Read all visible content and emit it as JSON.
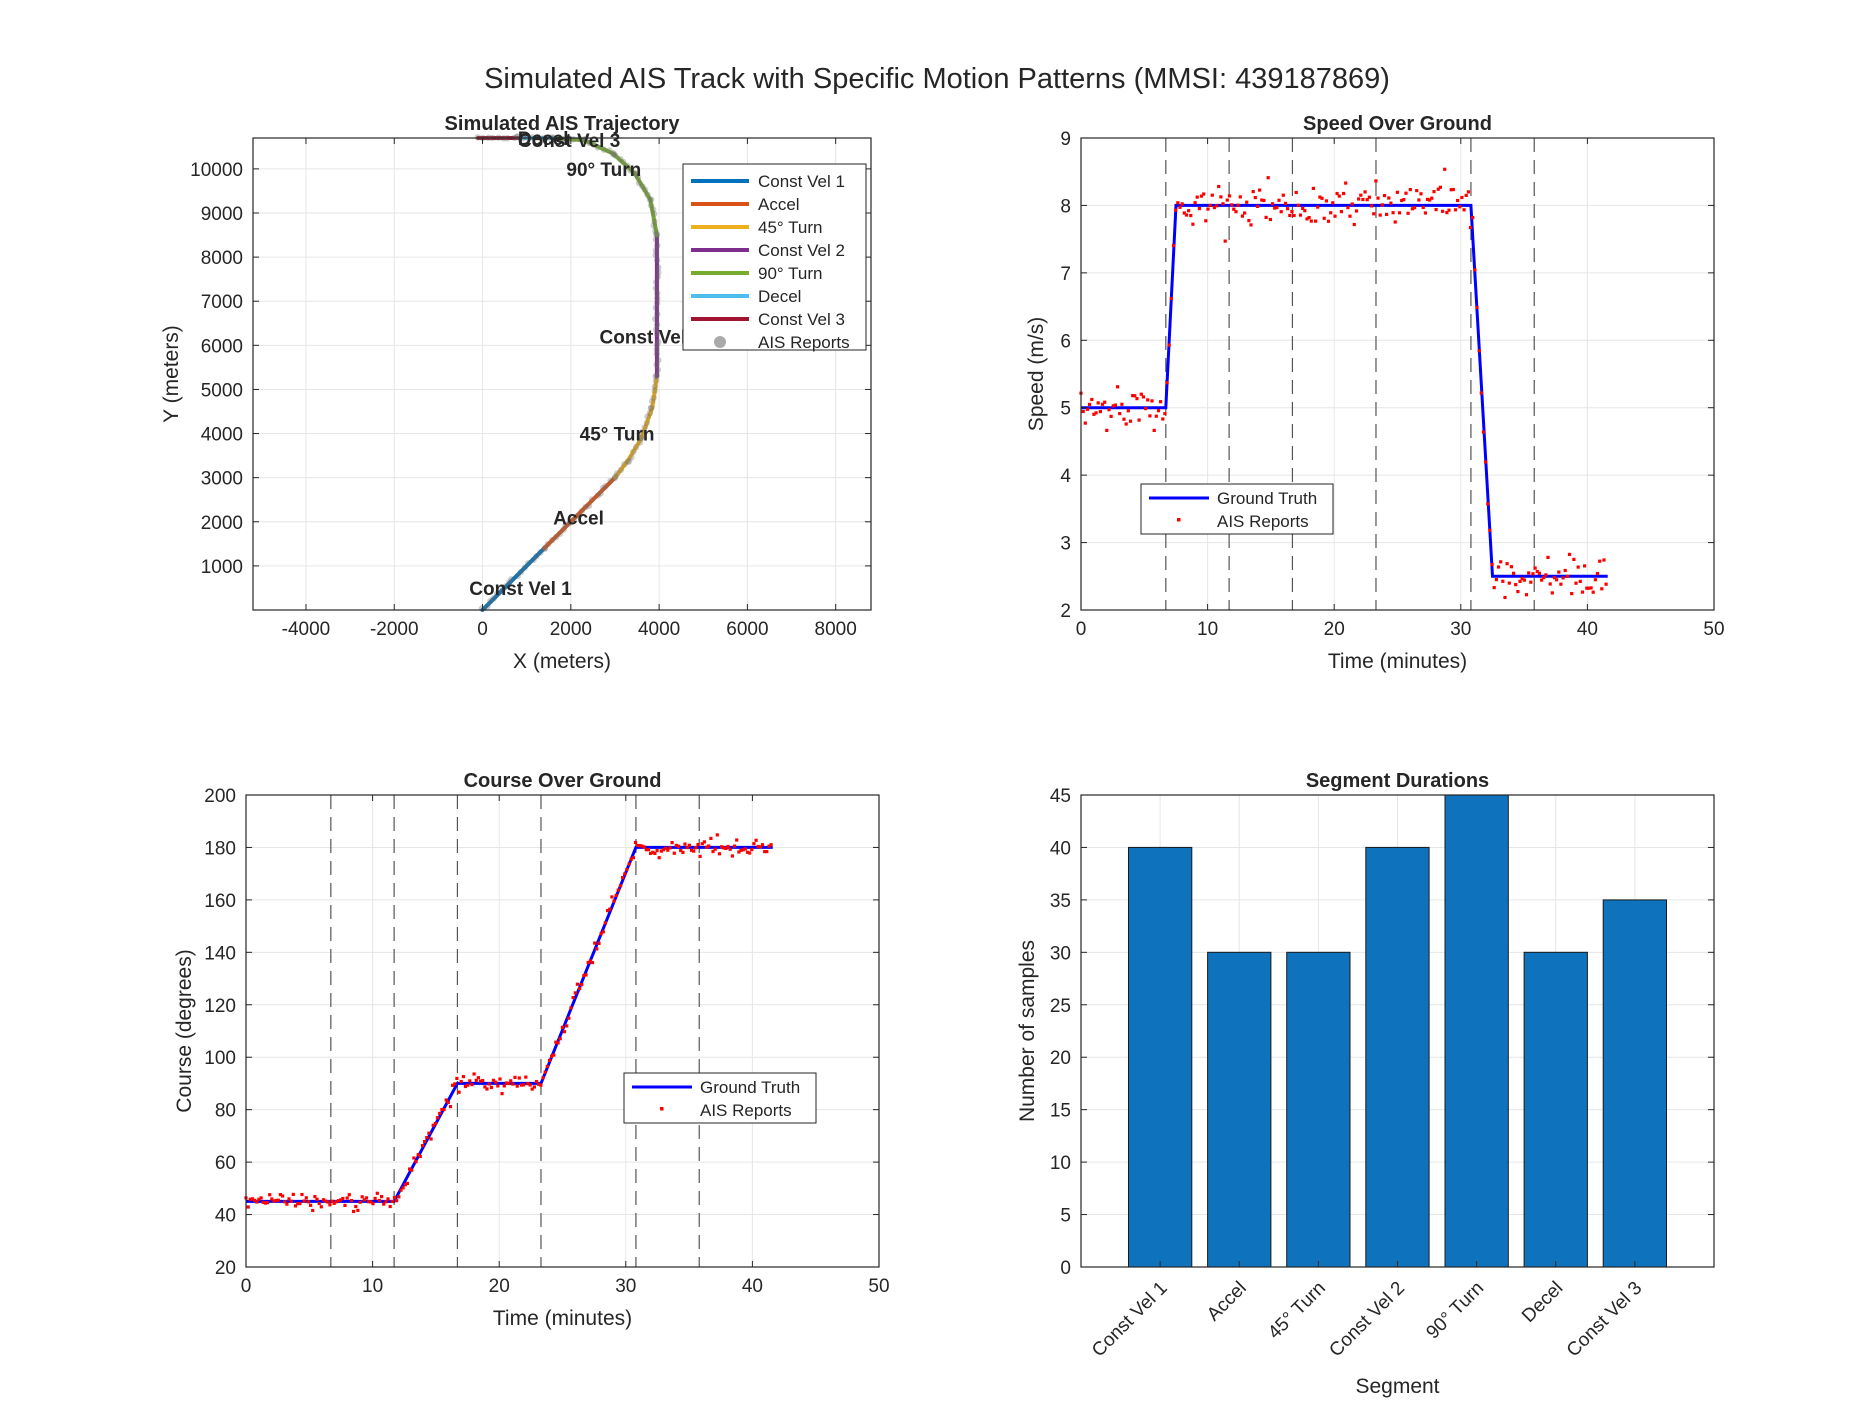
{
  "suptitle": "Simulated AIS Track with Specific Motion Patterns (MMSI: 439187869)",
  "colors": {
    "segments": [
      "#0072BD",
      "#D95319",
      "#EDB120",
      "#7E2F8E",
      "#77AC30",
      "#4DBEEE",
      "#A2142F"
    ],
    "ground_truth": "#0000FF",
    "ais_reports": "#FF0000",
    "ais_reports_traj": "#AAAAAA",
    "bars": "#0F72BD"
  },
  "trajectory": {
    "title": "Simulated AIS Trajectory",
    "xlabel": "X (meters)",
    "ylabel": "Y (meters)",
    "xticks": [
      "-4000",
      "-2000",
      "0",
      "2000",
      "4000",
      "6000",
      "8000"
    ],
    "yticks": [
      "1000",
      "2000",
      "3000",
      "4000",
      "5000",
      "6000",
      "7000",
      "8000",
      "9000",
      "10000"
    ],
    "annotations": [
      "Const Vel 1",
      "Accel",
      "45° Turn",
      "Const Vel 2",
      "90° Turn",
      "Decel",
      "Const Vel 3"
    ],
    "legend": [
      "Const Vel 1",
      "Accel",
      "45° Turn",
      "Const Vel 2",
      "90° Turn",
      "Decel",
      "Const Vel 3",
      "AIS Reports"
    ]
  },
  "speed": {
    "title": "Speed Over Ground",
    "xlabel": "Time (minutes)",
    "ylabel": "Speed (m/s)",
    "xticks": [
      "0",
      "10",
      "20",
      "30",
      "40",
      "50"
    ],
    "yticks": [
      "2",
      "3",
      "4",
      "5",
      "6",
      "7",
      "8",
      "9"
    ],
    "legend": [
      "Ground Truth",
      "AIS Reports"
    ]
  },
  "course": {
    "title": "Course Over Ground",
    "xlabel": "Time (minutes)",
    "ylabel": "Course (degrees)",
    "xticks": [
      "0",
      "10",
      "20",
      "30",
      "40",
      "50"
    ],
    "yticks": [
      "20",
      "40",
      "60",
      "80",
      "100",
      "120",
      "140",
      "160",
      "180",
      "200"
    ],
    "legend": [
      "Ground Truth",
      "AIS Reports"
    ]
  },
  "durations": {
    "title": "Segment Durations",
    "xlabel": "Segment",
    "ylabel": "Number of samples",
    "yticks": [
      "0",
      "5",
      "10",
      "15",
      "20",
      "25",
      "30",
      "35",
      "40",
      "45"
    ]
  },
  "chart_data": [
    {
      "type": "line",
      "title": "Simulated AIS Trajectory",
      "xlabel": "X (meters)",
      "ylabel": "Y (meters)",
      "xlim": [
        -5200,
        8800
      ],
      "ylim": [
        0,
        10700
      ],
      "grid": true,
      "legend_position": "top-right",
      "series": [
        {
          "name": "Const Vel 1",
          "points": [
            [
              0,
              0
            ],
            [
              1400,
              1400
            ]
          ]
        },
        {
          "name": "Accel",
          "points": [
            [
              1400,
              1400
            ],
            [
              3000,
              3000
            ]
          ]
        },
        {
          "name": "45° Turn",
          "points": [
            [
              3000,
              3000
            ],
            [
              3300,
              3400
            ],
            [
              3600,
              3900
            ],
            [
              3850,
              4600
            ],
            [
              3950,
              5300
            ]
          ]
        },
        {
          "name": "Const Vel 2",
          "points": [
            [
              3950,
              5300
            ],
            [
              3950,
              8500
            ]
          ]
        },
        {
          "name": "90° Turn",
          "points": [
            [
              3950,
              8500
            ],
            [
              3800,
              9300
            ],
            [
              3450,
              9900
            ],
            [
              2950,
              10350
            ],
            [
              2300,
              10650
            ],
            [
              1600,
              10700
            ]
          ]
        },
        {
          "name": "Decel",
          "points": [
            [
              1600,
              10700
            ],
            [
              800,
              10700
            ]
          ]
        },
        {
          "name": "Const Vel 3",
          "points": [
            [
              800,
              10700
            ],
            [
              -100,
              10700
            ]
          ]
        }
      ]
    },
    {
      "type": "line",
      "title": "Speed Over Ground",
      "xlabel": "Time (minutes)",
      "ylabel": "Speed (m/s)",
      "xlim": [
        0,
        50
      ],
      "ylim": [
        2,
        9
      ],
      "grid": true,
      "legend_position": "bottom-left",
      "segment_boundaries_min": [
        6.7,
        11.7,
        16.7,
        23.3,
        30.8,
        35.8
      ],
      "series": [
        {
          "name": "Ground Truth",
          "x": [
            0,
            6.7,
            7.5,
            30.8,
            32.5,
            41.6
          ],
          "y": [
            5,
            5,
            8,
            8,
            2.5,
            2.5
          ]
        },
        {
          "name": "AIS Reports",
          "x_range": [
            0,
            41.6
          ],
          "noise_std": 0.15
        }
      ]
    },
    {
      "type": "line",
      "title": "Course Over Ground",
      "xlabel": "Time (minutes)",
      "ylabel": "Course (degrees)",
      "xlim": [
        0,
        50
      ],
      "ylim": [
        20,
        200
      ],
      "grid": true,
      "legend_position": "center-right",
      "segment_boundaries_min": [
        6.7,
        11.7,
        16.7,
        23.3,
        30.8,
        35.8
      ],
      "series": [
        {
          "name": "Ground Truth",
          "x": [
            0,
            11.7,
            16.7,
            23.3,
            30.8,
            41.6
          ],
          "y": [
            45,
            45,
            90,
            90,
            180,
            180
          ]
        },
        {
          "name": "AIS Reports",
          "x_range": [
            0,
            41.6
          ],
          "noise_std": 1.6
        }
      ]
    },
    {
      "type": "bar",
      "title": "Segment Durations",
      "xlabel": "Segment",
      "ylabel": "Number of samples",
      "categories": [
        "Const Vel 1",
        "Accel",
        "45° Turn",
        "Const Vel 2",
        "90° Turn",
        "Decel",
        "Const Vel 3"
      ],
      "values": [
        40,
        30,
        30,
        40,
        45,
        30,
        35
      ],
      "ylim": [
        0,
        45
      ],
      "grid": true
    }
  ]
}
